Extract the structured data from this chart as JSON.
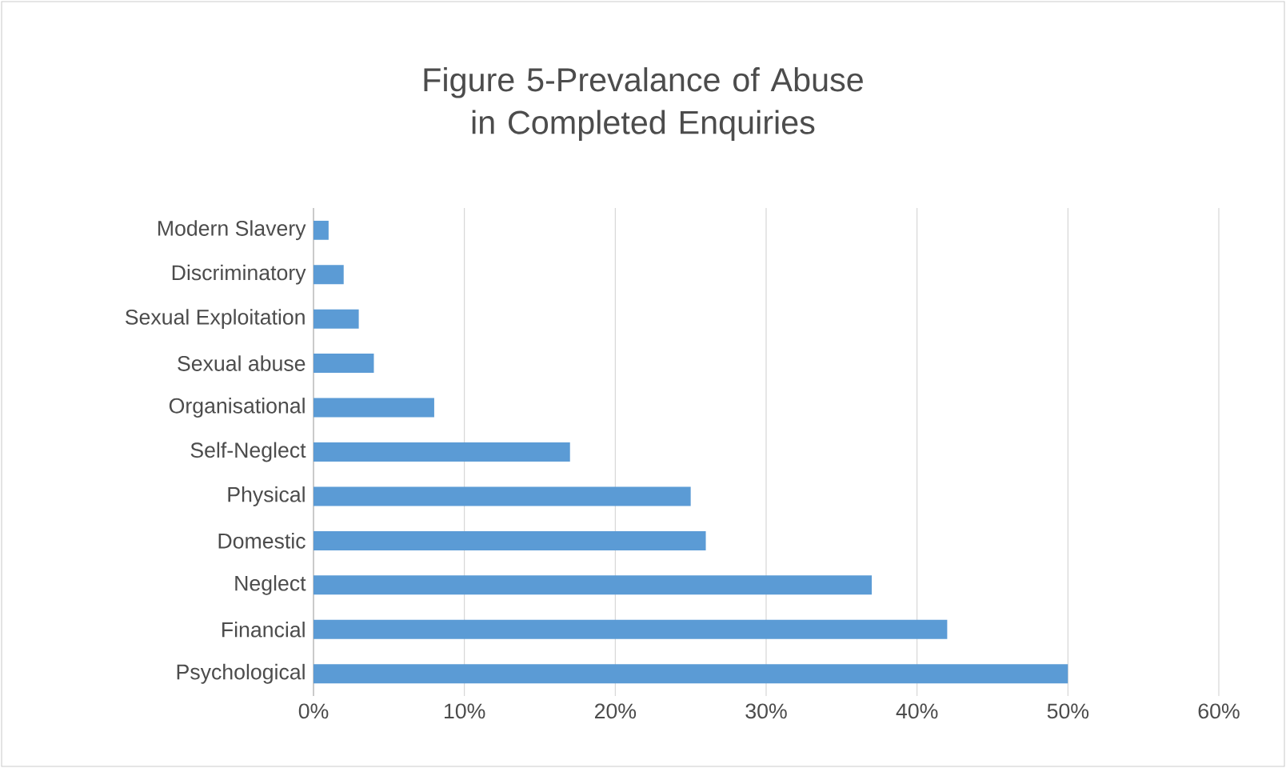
{
  "chart_data": {
    "type": "bar",
    "orientation": "horizontal",
    "title": "Figure 5-Prevalance of Abuse in Completed Enquiries",
    "categories": [
      "Modern Slavery",
      "Discriminatory",
      "Sexual Exploitation",
      "Sexual abuse",
      "Organisational",
      "Self-Neglect",
      "Physical",
      "Domestic",
      "Neglect",
      "Financial",
      "Psychological"
    ],
    "values": [
      1,
      2,
      3,
      4,
      8,
      17,
      25,
      26,
      37,
      42,
      50
    ],
    "color": "#5b9bd5",
    "xlim": [
      0,
      60
    ],
    "xticks": [
      {
        "value": 0,
        "label": "0%"
      },
      {
        "value": 10,
        "label": "10%"
      },
      {
        "value": 20,
        "label": "20%"
      },
      {
        "value": 30,
        "label": "30%"
      },
      {
        "value": 40,
        "label": "40%"
      },
      {
        "value": 50,
        "label": "50%"
      },
      {
        "value": 60,
        "label": "60%"
      }
    ],
    "grid": "x"
  }
}
